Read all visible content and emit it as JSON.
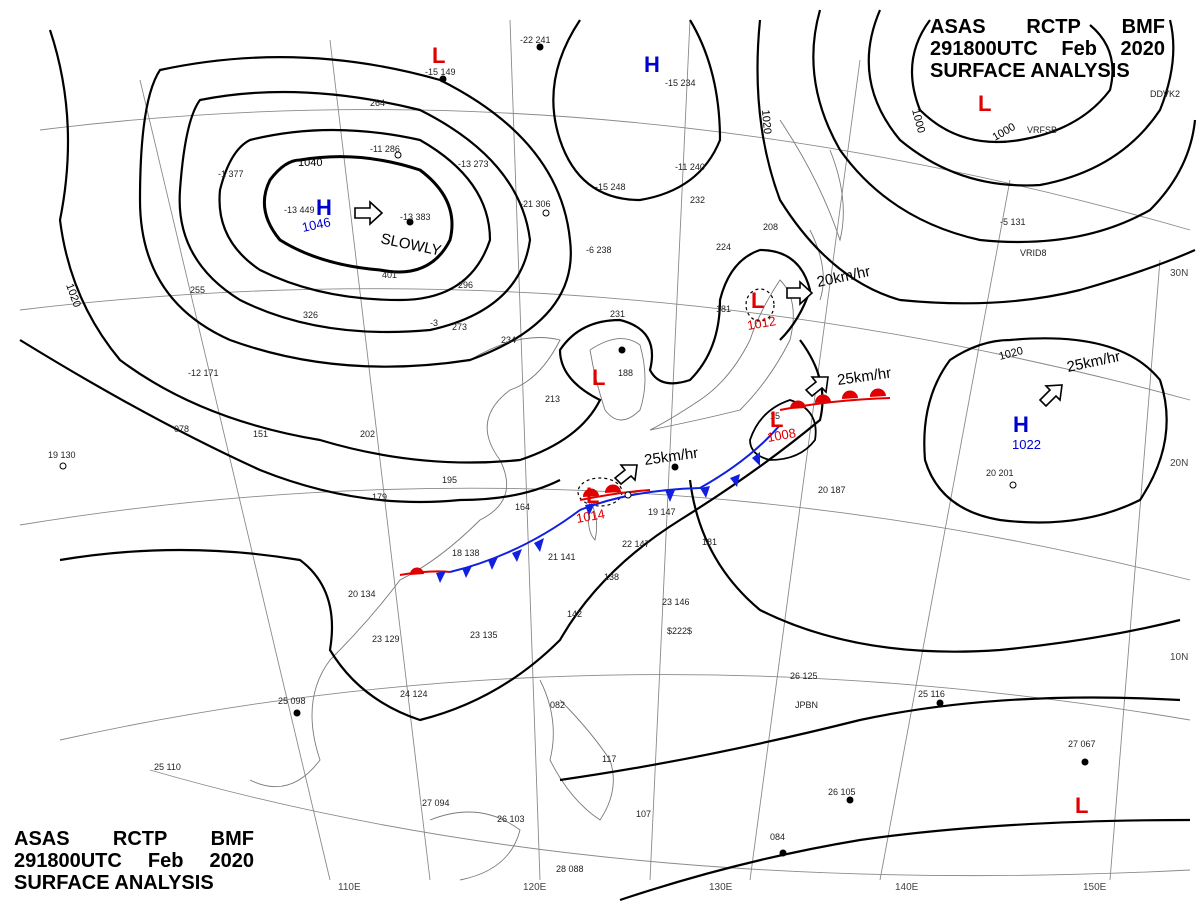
{
  "chart_header": {
    "line1": [
      "ASAS",
      "RCTP",
      "BMF"
    ],
    "line2": [
      "291800UTC",
      "Feb",
      "2020"
    ],
    "line3": "SURFACE ANALYSIS"
  },
  "colors": {
    "high": "#0000cc",
    "low": "#e00000",
    "cold_front": "#1020e0",
    "warm_front": "#e00000",
    "isobar": "#000000",
    "grid": "#888888",
    "coast": "#7a7a7a"
  },
  "pressure_centers": [
    {
      "type": "H",
      "value": "1046"
    },
    {
      "type": "H",
      "value": ""
    },
    {
      "type": "H",
      "value": "1022"
    },
    {
      "type": "L",
      "value": ""
    },
    {
      "type": "L",
      "value": ""
    },
    {
      "type": "L",
      "value": "1012"
    },
    {
      "type": "L",
      "value": "1008"
    },
    {
      "type": "L",
      "value": "1014"
    },
    {
      "type": "L",
      "value": ""
    },
    {
      "type": "L",
      "value": ""
    }
  ],
  "motion_labels": [
    "SLOWLY",
    "20km/hr",
    "25km/hr",
    "25km/hr",
    "25km/hr"
  ],
  "isobar_labels": [
    "1040",
    "1020",
    "1020",
    "1020",
    "1000",
    "1000"
  ],
  "latitude_labels": [
    "30N",
    "20N",
    "10N"
  ],
  "longitude_labels": [
    "110E",
    "120E",
    "130E",
    "140E",
    "150E"
  ],
  "station_plots": [
    "-22 241",
    "-15 149",
    "-15 234",
    "-13 273",
    "-11 286",
    "-11 240",
    "-1 377",
    "-13 449",
    "-13 383",
    "-21 306",
    "-15 248",
    "-6 238",
    "232",
    "224",
    "208",
    "401",
    "296",
    "264",
    "231",
    "234",
    "273",
    "-3",
    "326",
    "255",
    "-12 171",
    "078",
    "151",
    "19 130",
    "202",
    "195",
    "179",
    "164",
    "20 134",
    "18 138",
    "21 141",
    "23 129",
    "23 135",
    "25 098",
    "24 124",
    "20 187",
    "20 201",
    "26 125",
    "25 116",
    "27 067",
    "26 105",
    "27 094",
    "26 103",
    "28 088",
    "22 147",
    "19 147",
    "181",
    "23 146",
    "138",
    "142",
    "117",
    "107",
    "084",
    "082",
    "213",
    "181",
    "188",
    "15",
    "25 110",
    "$222$",
    "JPBN",
    "VRFSB",
    "DDVK2",
    "VRID8",
    "-5 131"
  ]
}
